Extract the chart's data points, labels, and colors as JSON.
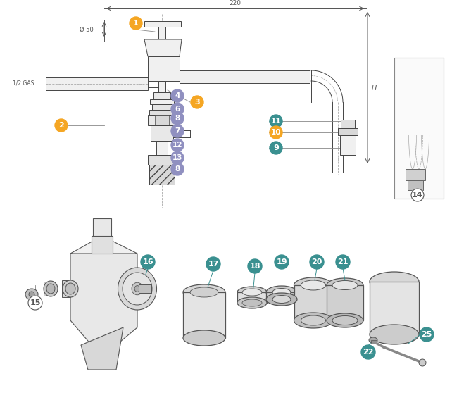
{
  "bg_color": "#ffffff",
  "figure_width": 6.42,
  "figure_height": 5.95,
  "dpi": 100,
  "callout_orange": "#F5A623",
  "callout_lavender": "#9090C0",
  "callout_green": "#3A9090",
  "callout_teal": "#3A9090",
  "callout_none_bg": "#ffffff",
  "callout_none_ec": "#555555",
  "line_color": "#444444",
  "dim_color": "#555555",
  "dim_text_O50": "Ø 50",
  "dim_text_220": "220",
  "dim_text_H": "H",
  "dim_text_12GAS": "1/2 GAS"
}
